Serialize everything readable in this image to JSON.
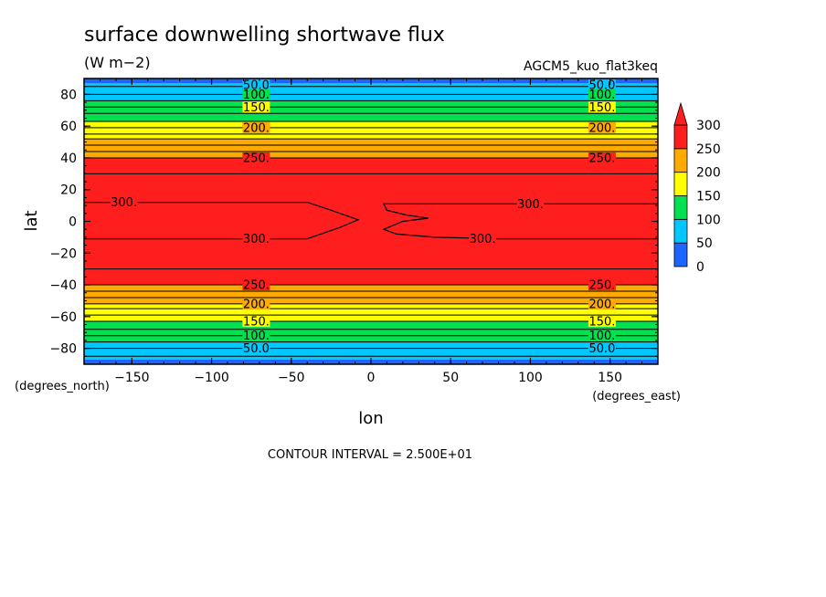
{
  "chart_data": {
    "type": "heatmap",
    "title": "surface downwelling shortwave flux",
    "units": "(W m−2)",
    "dataset_label": "AGCM5_kuo_flat3keq",
    "xlabel": "lon",
    "ylabel": "lat",
    "x_units": "(degrees_east)",
    "y_units": "(degrees_north)",
    "xlim": [
      -180,
      180
    ],
    "ylim": [
      -90,
      90
    ],
    "x_ticks": [
      -150,
      -100,
      -50,
      0,
      50,
      100,
      150
    ],
    "y_ticks": [
      80,
      60,
      40,
      20,
      0,
      -20,
      -40,
      -60,
      -80
    ],
    "x_tick_labels": [
      "−150",
      "−100",
      "−50",
      "0",
      "50",
      "100",
      "150"
    ],
    "y_tick_labels": [
      "80",
      "60",
      "40",
      "20",
      "0",
      "−20",
      "−40",
      "−60",
      "−80"
    ],
    "contour_interval_text": "CONTOUR INTERVAL = 2.500E+01",
    "colorbar": {
      "levels": [
        0,
        50,
        100,
        150,
        200,
        250,
        300
      ],
      "labels": [
        "0",
        "50",
        "100",
        "150",
        "200",
        "250",
        "300"
      ],
      "colors": [
        "#1e64ff",
        "#00c8ff",
        "#00e150",
        "#ffff00",
        "#ffaa00",
        "#ff1e1e"
      ],
      "extend": "max"
    },
    "bands": [
      {
        "lat_min": -90,
        "lat_max": -87,
        "value": 30
      },
      {
        "lat_min": -87,
        "lat_max": -76,
        "value": 50
      },
      {
        "lat_min": -76,
        "lat_max": -63,
        "value": 100
      },
      {
        "lat_min": -63,
        "lat_max": -52,
        "value": 150
      },
      {
        "lat_min": -52,
        "lat_max": -40,
        "value": 200
      },
      {
        "lat_min": -40,
        "lat_max": 40,
        "value": 250
      },
      {
        "lat_min": 40,
        "lat_max": 52,
        "value": 200
      },
      {
        "lat_min": 52,
        "lat_max": 63,
        "value": 150
      },
      {
        "lat_min": 63,
        "lat_max": 76,
        "value": 100
      },
      {
        "lat_min": 76,
        "lat_max": 87,
        "value": 50
      },
      {
        "lat_min": 87,
        "lat_max": 90,
        "value": 30
      }
    ],
    "contour_lines": [
      -85,
      -80,
      -76,
      -72,
      -68,
      -63,
      -59,
      -55,
      -52,
      -48,
      -44,
      -40,
      -30,
      30,
      40,
      44,
      48,
      52,
      55,
      59,
      63,
      68,
      72,
      76,
      80,
      85
    ],
    "regions_300": [
      [
        [
          -180,
          12
        ],
        [
          -40,
          12
        ],
        [
          -25,
          7
        ],
        [
          -8,
          1
        ],
        [
          -20,
          -4
        ],
        [
          -40,
          -11
        ],
        [
          -180,
          -11
        ]
      ],
      [
        [
          180,
          11
        ],
        [
          8,
          11
        ],
        [
          10,
          7
        ],
        [
          22,
          4
        ],
        [
          36,
          2
        ],
        [
          20,
          0
        ],
        [
          8,
          -5
        ],
        [
          16,
          -8
        ],
        [
          40,
          -10
        ],
        [
          80,
          -11
        ],
        [
          180,
          -11
        ]
      ]
    ],
    "contour_labels": [
      {
        "text": "50.0",
        "lon": -72,
        "lat": 86
      },
      {
        "text": "100.",
        "lon": -72,
        "lat": 80
      },
      {
        "text": "150.",
        "lon": -72,
        "lat": 72
      },
      {
        "text": "200.",
        "lon": -72,
        "lat": 59
      },
      {
        "text": "250.",
        "lon": -72,
        "lat": 40
      },
      {
        "text": "300.",
        "lon": -155,
        "lat": 12
      },
      {
        "text": "300.",
        "lon": -72,
        "lat": -11
      },
      {
        "text": "300.",
        "lon": 70,
        "lat": -11
      },
      {
        "text": "300.",
        "lon": 100,
        "lat": 11
      },
      {
        "text": "250.",
        "lon": -72,
        "lat": -40
      },
      {
        "text": "200.",
        "lon": -72,
        "lat": -52
      },
      {
        "text": "150.",
        "lon": -72,
        "lat": -63
      },
      {
        "text": "100.",
        "lon": -72,
        "lat": -72
      },
      {
        "text": "50.0",
        "lon": -72,
        "lat": -80
      },
      {
        "text": "50.0",
        "lon": 145,
        "lat": 86
      },
      {
        "text": "100.",
        "lon": 145,
        "lat": 80
      },
      {
        "text": "150.",
        "lon": 145,
        "lat": 72
      },
      {
        "text": "200.",
        "lon": 145,
        "lat": 59
      },
      {
        "text": "250.",
        "lon": 145,
        "lat": 40
      },
      {
        "text": "250.",
        "lon": 145,
        "lat": -40
      },
      {
        "text": "200.",
        "lon": 145,
        "lat": -52
      },
      {
        "text": "150.",
        "lon": 145,
        "lat": -63
      },
      {
        "text": "100.",
        "lon": 145,
        "lat": -72
      },
      {
        "text": "50.0",
        "lon": 145,
        "lat": -80
      }
    ]
  }
}
